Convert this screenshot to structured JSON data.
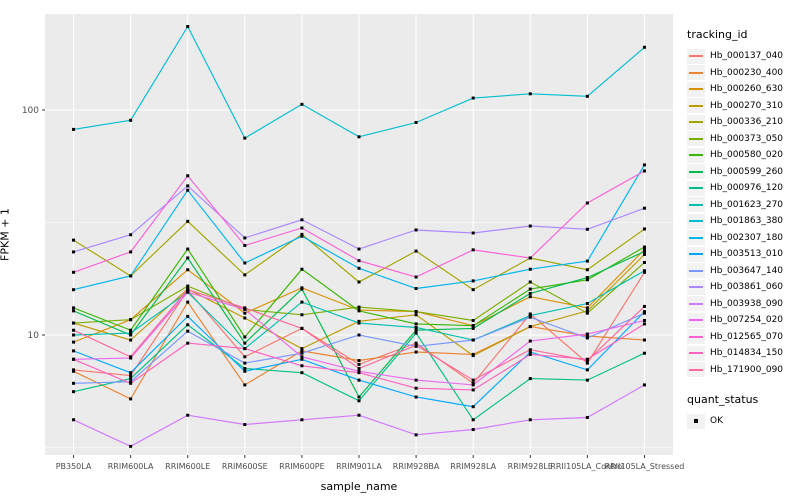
{
  "chart_data": {
    "type": "line",
    "title": "",
    "xlabel": "sample_name",
    "ylabel": "FPKM + 1",
    "y_scale": "log10",
    "ylim": [
      2.9,
      270
    ],
    "grid": true,
    "legend_position": "right",
    "panel_bg": "#EBEBEB",
    "point_color": "#000000",
    "y_ticks": [
      {
        "value": 10,
        "label": "10"
      },
      {
        "value": 100,
        "label": "100"
      }
    ],
    "y_minor_ticks": [
      3.162,
      31.62
    ],
    "categories": [
      "PB350LA",
      "RRIM600LA",
      "RRIM600LE",
      "RRIM600SE",
      "RRIM600PE",
      "RRIM901LA",
      "RRIM928BA",
      "RRIM928LA",
      "RRIM928LE",
      "RRII105LA_Control",
      "RRII105LA_Stressed"
    ],
    "legend": {
      "series_title": "tracking_id",
      "status_title": "quant_status",
      "status_label": "OK"
    },
    "series": [
      {
        "name": "Hb_000137_040",
        "color": "#F8766D",
        "values": [
          7.0,
          6.6,
          15.8,
          8.0,
          10.7,
          7.4,
          9.2,
          6.1,
          12.4,
          7.5,
          19.0
        ]
      },
      {
        "name": "Hb_000230_400",
        "color": "#EA8331",
        "values": [
          6.9,
          5.2,
          14.0,
          6.0,
          8.5,
          7.7,
          8.4,
          8.2,
          10.9,
          9.9,
          9.5
        ]
      },
      {
        "name": "Hb_000260_630",
        "color": "#D89000",
        "values": [
          9.3,
          11.7,
          19.5,
          12.5,
          16.2,
          12.9,
          12.7,
          11.0,
          14.8,
          13.2,
          24.0
        ]
      },
      {
        "name": "Hb_000270_310",
        "color": "#C09B00",
        "values": [
          11.3,
          9.5,
          16.0,
          11.9,
          8.7,
          11.5,
          12.3,
          8.1,
          10.9,
          12.8,
          22.8
        ]
      },
      {
        "name": "Hb_000336_210",
        "color": "#A3A500",
        "values": [
          26.4,
          18.3,
          32.0,
          18.5,
          28.0,
          17.2,
          23.6,
          15.9,
          22.0,
          19.5,
          29.6
        ]
      },
      {
        "name": "Hb_000373_050",
        "color": "#7CAE00",
        "values": [
          11.3,
          11.7,
          16.5,
          13.0,
          12.3,
          13.3,
          12.7,
          11.6,
          17.2,
          12.5,
          21.0
        ]
      },
      {
        "name": "Hb_000580_020",
        "color": "#39B600",
        "values": [
          13.2,
          10.5,
          24.1,
          9.8,
          19.6,
          12.8,
          11.2,
          11.0,
          16.0,
          17.6,
          24.6
        ]
      },
      {
        "name": "Hb_000599_260",
        "color": "#00BB4E",
        "values": [
          12.8,
          10.0,
          22.0,
          9.2,
          16.0,
          5.3,
          10.5,
          10.7,
          15.3,
          18.0,
          23.5
        ]
      },
      {
        "name": "Hb_000976_120",
        "color": "#00C087",
        "values": [
          5.6,
          6.4,
          11.1,
          7.1,
          6.8,
          5.1,
          10.2,
          4.2,
          6.4,
          6.3,
          8.3
        ]
      },
      {
        "name": "Hb_001623_270",
        "color": "#00C0B2",
        "values": [
          10.0,
          10.2,
          15.5,
          8.7,
          14.0,
          11.3,
          10.8,
          9.5,
          12.2,
          13.8,
          19.3
        ]
      },
      {
        "name": "Hb_001863_380",
        "color": "#00BDD0",
        "values": [
          82,
          90,
          235,
          75,
          106,
          76,
          88,
          113,
          118,
          115,
          190
        ]
      },
      {
        "name": "Hb_002307_180",
        "color": "#00B5ED",
        "values": [
          15.9,
          18.3,
          44.0,
          20.9,
          27.5,
          19.8,
          16.1,
          17.4,
          19.6,
          21.3,
          57.0
        ]
      },
      {
        "name": "Hb_003513_010",
        "color": "#00A9FF",
        "values": [
          8.5,
          6.8,
          12.1,
          6.9,
          7.8,
          6.3,
          5.3,
          4.8,
          8.4,
          7.0,
          12.7
        ]
      },
      {
        "name": "Hb_003647_140",
        "color": "#7997FF",
        "values": [
          6.1,
          6.2,
          10.4,
          7.5,
          8.3,
          10.0,
          8.9,
          9.5,
          12.0,
          9.7,
          12.5
        ]
      },
      {
        "name": "Hb_003861_060",
        "color": "#AC88FF",
        "values": [
          23.4,
          27.9,
          46.0,
          27.0,
          32.5,
          24.1,
          29.3,
          28.4,
          30.5,
          29.5,
          36.6
        ]
      },
      {
        "name": "Hb_003938_090",
        "color": "#D277FF",
        "values": [
          4.2,
          3.2,
          4.4,
          4.0,
          4.2,
          4.4,
          3.6,
          3.8,
          4.2,
          4.3,
          6.0
        ]
      },
      {
        "name": "Hb_007254_020",
        "color": "#EC69EF",
        "values": [
          7.8,
          7.9,
          15.5,
          13.0,
          8.0,
          6.9,
          6.3,
          6.0,
          9.4,
          10.1,
          11.6
        ]
      },
      {
        "name": "Hb_012565_070",
        "color": "#FB61D7",
        "values": [
          19.0,
          23.4,
          51.0,
          25.0,
          29.9,
          21.4,
          18.1,
          23.9,
          22.0,
          38.6,
          53.6
        ]
      },
      {
        "name": "Hb_014834_150",
        "color": "#FF61BF",
        "values": [
          7.8,
          6.1,
          9.2,
          8.7,
          7.3,
          6.8,
          5.8,
          5.7,
          8.2,
          7.8,
          11.2
        ]
      },
      {
        "name": "Hb_171900_090",
        "color": "#FF689E",
        "values": [
          10.5,
          8.0,
          15.9,
          13.2,
          10.7,
          7.1,
          9.0,
          6.3,
          8.6,
          7.7,
          13.4
        ]
      }
    ]
  }
}
